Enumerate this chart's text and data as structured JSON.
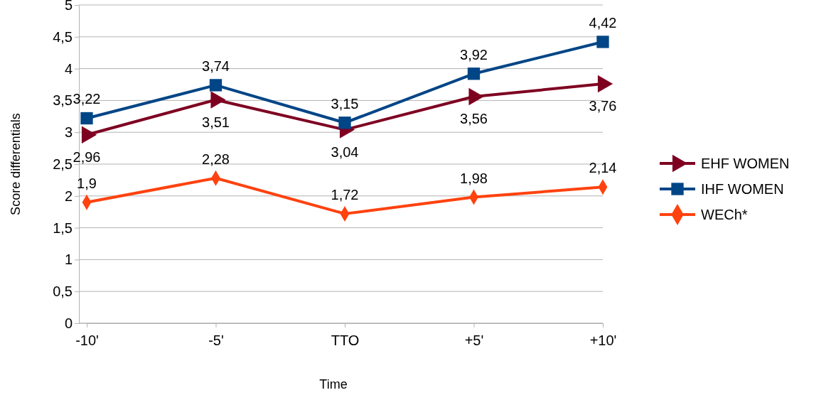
{
  "chart_data": {
    "type": "line",
    "xlabel": "Time",
    "ylabel": "Score differentials",
    "categories": [
      "-10'",
      "-5'",
      "TTO",
      "+5'",
      "+10'"
    ],
    "ylim": [
      0,
      5
    ],
    "yticks": [
      0,
      {
        "value": 0.5,
        "label": "0,5"
      },
      1,
      {
        "value": 1.5,
        "label": "1,5"
      },
      2,
      {
        "value": 2.5,
        "label": "2,5"
      },
      3,
      {
        "value": 3.5,
        "label": "3,5"
      },
      4,
      {
        "value": 4.5,
        "label": "4,5"
      },
      5
    ],
    "grid": "y",
    "legend": "right",
    "series": [
      {
        "name": "EHF WOMEN",
        "color": "#7e0021",
        "marker": "triangle",
        "values": [
          2.96,
          3.51,
          3.04,
          3.56,
          3.76
        ],
        "value_labels": [
          "2,96",
          "3,51",
          "3,04",
          "3,56",
          "3,76"
        ]
      },
      {
        "name": "IHF WOMEN",
        "color": "#004586",
        "marker": "square",
        "values": [
          3.22,
          3.74,
          3.15,
          3.92,
          4.42
        ],
        "value_labels": [
          "3,22",
          "3,74",
          "3,15",
          "3,92",
          "4,42"
        ]
      },
      {
        "name": "WECh*",
        "color": "#ff420e",
        "marker": "diamond",
        "values": [
          1.9,
          2.28,
          1.72,
          1.98,
          2.14
        ],
        "value_labels": [
          "1,9",
          "2,28",
          "1,72",
          "1,98",
          "2,14"
        ]
      }
    ]
  }
}
